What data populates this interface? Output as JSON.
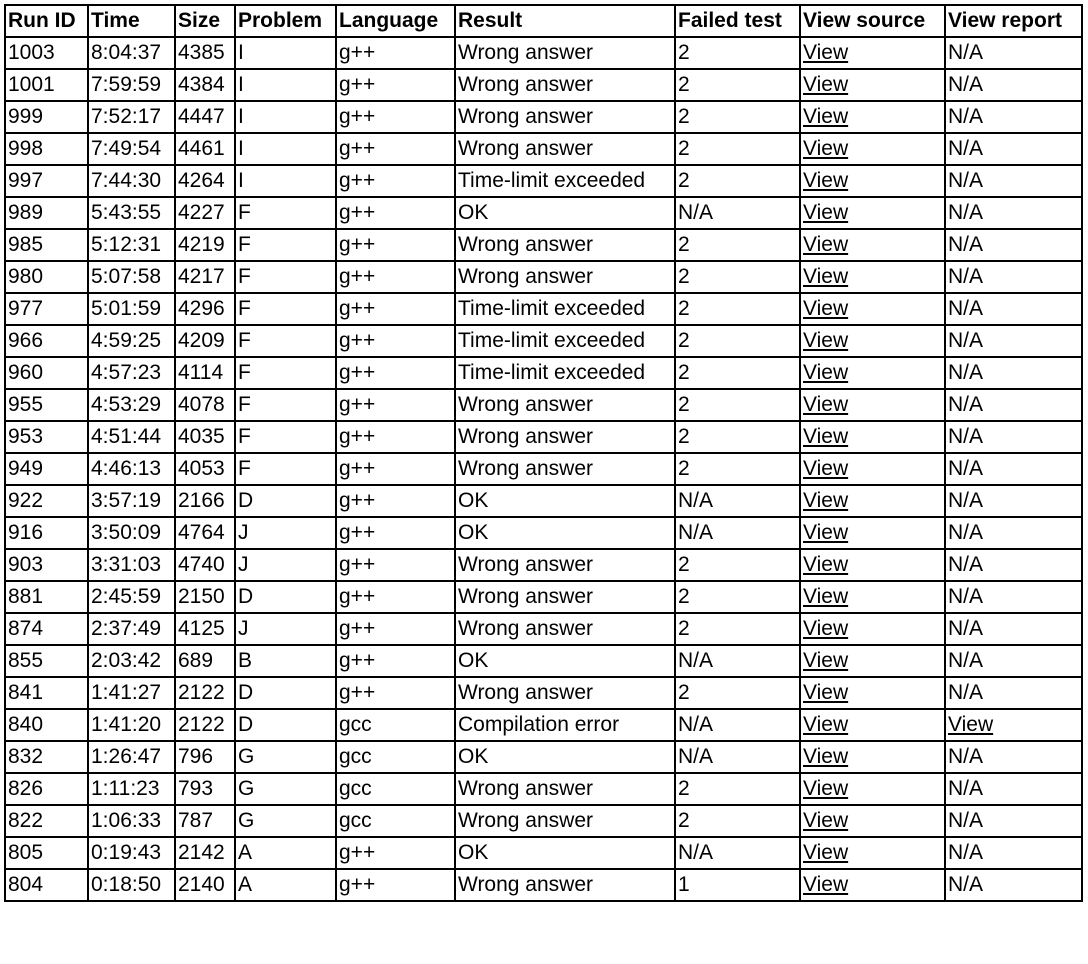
{
  "table": {
    "headers": [
      "Run ID",
      "Time",
      "Size",
      "Problem",
      "Language",
      "Result",
      "Failed test",
      "View source",
      "View report"
    ],
    "rows": [
      [
        "1003",
        "8:04:37",
        "4385",
        "I",
        "g++",
        "Wrong answer",
        "2",
        "View",
        "N/A"
      ],
      [
        "1001",
        "7:59:59",
        "4384",
        "I",
        "g++",
        "Wrong answer",
        "2",
        "View",
        "N/A"
      ],
      [
        "999",
        "7:52:17",
        "4447",
        "I",
        "g++",
        "Wrong answer",
        "2",
        "View",
        "N/A"
      ],
      [
        "998",
        "7:49:54",
        "4461",
        "I",
        "g++",
        "Wrong answer",
        "2",
        "View",
        "N/A"
      ],
      [
        "997",
        "7:44:30",
        "4264",
        "I",
        "g++",
        "Time-limit exceeded",
        "2",
        "View",
        "N/A"
      ],
      [
        "989",
        "5:43:55",
        "4227",
        "F",
        "g++",
        "OK",
        "N/A",
        "View",
        "N/A"
      ],
      [
        "985",
        "5:12:31",
        "4219",
        "F",
        "g++",
        "Wrong answer",
        "2",
        "View",
        "N/A"
      ],
      [
        "980",
        "5:07:58",
        "4217",
        "F",
        "g++",
        "Wrong answer",
        "2",
        "View",
        "N/A"
      ],
      [
        "977",
        "5:01:59",
        "4296",
        "F",
        "g++",
        "Time-limit exceeded",
        "2",
        "View",
        "N/A"
      ],
      [
        "966",
        "4:59:25",
        "4209",
        "F",
        "g++",
        "Time-limit exceeded",
        "2",
        "View",
        "N/A"
      ],
      [
        "960",
        "4:57:23",
        "4114",
        "F",
        "g++",
        "Time-limit exceeded",
        "2",
        "View",
        "N/A"
      ],
      [
        "955",
        "4:53:29",
        "4078",
        "F",
        "g++",
        "Wrong answer",
        "2",
        "View",
        "N/A"
      ],
      [
        "953",
        "4:51:44",
        "4035",
        "F",
        "g++",
        "Wrong answer",
        "2",
        "View",
        "N/A"
      ],
      [
        "949",
        "4:46:13",
        "4053",
        "F",
        "g++",
        "Wrong answer",
        "2",
        "View",
        "N/A"
      ],
      [
        "922",
        "3:57:19",
        "2166",
        "D",
        "g++",
        "OK",
        "N/A",
        "View",
        "N/A"
      ],
      [
        "916",
        "3:50:09",
        "4764",
        "J",
        "g++",
        "OK",
        "N/A",
        "View",
        "N/A"
      ],
      [
        "903",
        "3:31:03",
        "4740",
        "J",
        "g++",
        "Wrong answer",
        "2",
        "View",
        "N/A"
      ],
      [
        "881",
        "2:45:59",
        "2150",
        "D",
        "g++",
        "Wrong answer",
        "2",
        "View",
        "N/A"
      ],
      [
        "874",
        "2:37:49",
        "4125",
        "J",
        "g++",
        "Wrong answer",
        "2",
        "View",
        "N/A"
      ],
      [
        "855",
        "2:03:42",
        "689",
        "B",
        "g++",
        "OK",
        "N/A",
        "View",
        "N/A"
      ],
      [
        "841",
        "1:41:27",
        "2122",
        "D",
        "g++",
        "Wrong answer",
        "2",
        "View",
        "N/A"
      ],
      [
        "840",
        "1:41:20",
        "2122",
        "D",
        "gcc",
        "Compilation error",
        "N/A",
        "View",
        "View"
      ],
      [
        "832",
        "1:26:47",
        "796",
        "G",
        "gcc",
        "OK",
        "N/A",
        "View",
        "N/A"
      ],
      [
        "826",
        "1:11:23",
        "793",
        "G",
        "gcc",
        "Wrong answer",
        "2",
        "View",
        "N/A"
      ],
      [
        "822",
        "1:06:33",
        "787",
        "G",
        "gcc",
        "Wrong answer",
        "2",
        "View",
        "N/A"
      ],
      [
        "805",
        "0:19:43",
        "2142",
        "A",
        "g++",
        "OK",
        "N/A",
        "View",
        "N/A"
      ],
      [
        "804",
        "0:18:50",
        "2140",
        "A",
        "g++",
        "Wrong answer",
        "1",
        "View",
        "N/A"
      ]
    ]
  }
}
